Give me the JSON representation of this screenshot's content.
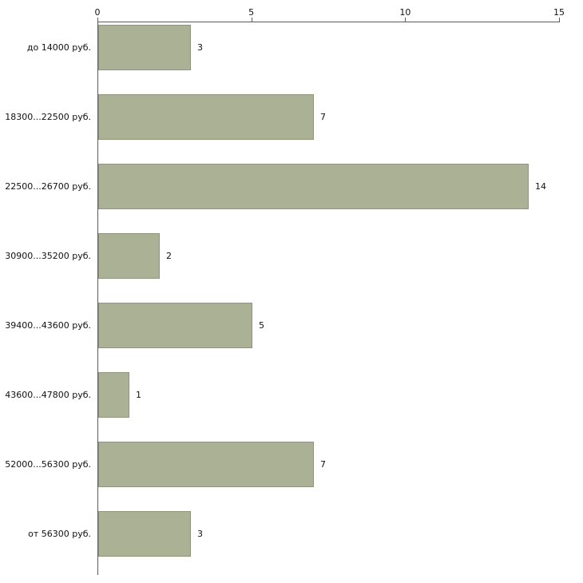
{
  "chart_data": {
    "type": "bar",
    "orientation": "horizontal",
    "title": "",
    "xlabel": "",
    "ylabel": "",
    "categories": [
      "до 14000 руб.",
      "18300...22500 руб.",
      "22500...26700 руб.",
      "30900...35200 руб.",
      "39400...43600 руб.",
      "43600...47800 руб.",
      "52000...56300 руб.",
      "от 56300 руб."
    ],
    "values": [
      3,
      7,
      14,
      2,
      5,
      1,
      7,
      3
    ],
    "xlim": [
      0,
      15
    ],
    "x_ticks": [
      "0",
      "5",
      "10",
      "15"
    ],
    "grid": false,
    "legend_position": "none",
    "bar_color": "#abb194",
    "bar_border_color": "#8f9579",
    "axis_color": "#5a5a5a",
    "background_color": "#ffffff"
  }
}
